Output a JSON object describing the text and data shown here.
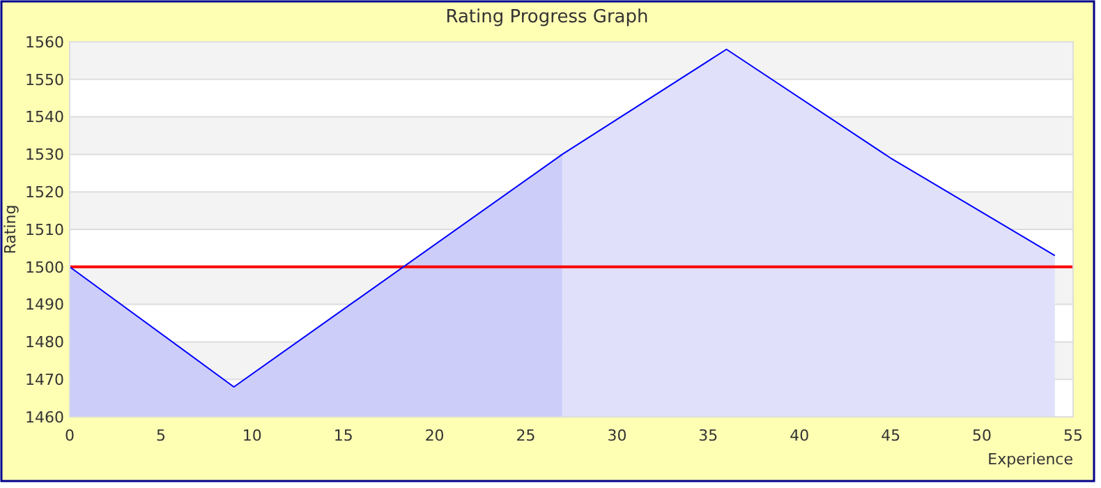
{
  "chart_data": {
    "type": "line",
    "title": "Rating Progress Graph",
    "xlabel": "Experience",
    "ylabel": "Rating",
    "xlim": [
      0,
      55
    ],
    "xticks": [
      0,
      5,
      10,
      15,
      20,
      25,
      30,
      35,
      40,
      45,
      50,
      55
    ],
    "ylim": [
      1460,
      1560
    ],
    "yticks": [
      1460,
      1470,
      1480,
      1490,
      1500,
      1510,
      1520,
      1530,
      1540,
      1550,
      1560
    ],
    "grid": "y",
    "marker": "none",
    "line_style": "solid",
    "series": [
      {
        "type": "area",
        "color": "#cdcdfa",
        "x": [
          0,
          9,
          27
        ],
        "values": [
          1500,
          1468,
          1530
        ]
      },
      {
        "type": "area",
        "color": "#e0e0fa",
        "x": [
          27,
          36,
          45,
          54
        ],
        "values": [
          1530,
          1558,
          1529,
          1503
        ]
      },
      {
        "color": "#0000ff",
        "x": [
          0,
          9,
          27,
          36,
          45,
          54
        ],
        "values": [
          1500,
          1468,
          1530,
          1558,
          1529,
          1503
        ]
      }
    ],
    "ref_lines": [
      {
        "axis": "y",
        "value": 1500,
        "color": "#ff0000"
      }
    ]
  }
}
